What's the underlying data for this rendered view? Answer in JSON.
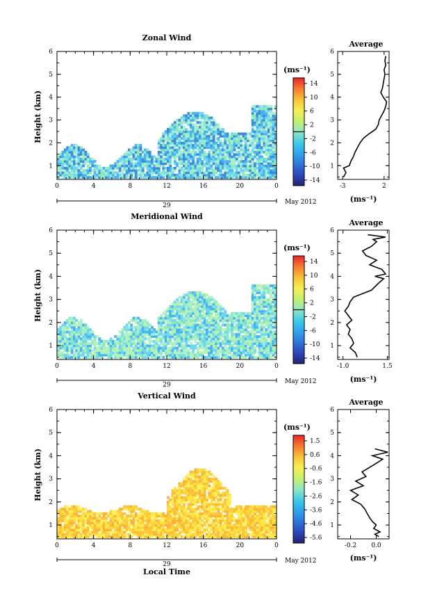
{
  "figure": {
    "date_label": "May 2012",
    "day_label": "29",
    "xlabel": "Local Time"
  },
  "chart_data": [
    {
      "type": "heatmap",
      "title": "Zonal Wind",
      "ylabel": "Height (km)",
      "x_ticks": [
        "0",
        "4",
        "8",
        "12",
        "16",
        "20",
        "0"
      ],
      "xlim": [
        0,
        24
      ],
      "y_ticks": [
        "1",
        "2",
        "3",
        "4",
        "5",
        "6"
      ],
      "ylim": [
        0.4,
        6
      ],
      "colorbar": {
        "unit": "(ms⁻¹)",
        "ticks": [
          "14",
          "10",
          "6",
          "2",
          "-2",
          "-6",
          "-10",
          "-14"
        ],
        "range": [
          -16,
          16
        ],
        "marker": 0
      },
      "fill_colors": [
        "#46b4f0",
        "#6ed6f4",
        "#8ee8c0",
        "#3c8cd8",
        "#aaf0d0"
      ],
      "profile": {
        "title": "Average",
        "unit": "(ms⁻¹)",
        "x_ticks": [
          "-3",
          "2"
        ],
        "x_tick_values": [
          -3,
          2
        ],
        "xlim": [
          -3.6,
          2.6
        ],
        "x": [
          -2.9,
          -2.6,
          -2.9,
          -2.2,
          -2.0,
          -1.7,
          -1.5,
          -1.2,
          -0.9,
          -0.5,
          0.2,
          1.0,
          1.3,
          1.4,
          1.7,
          2.0,
          2.2,
          2.3,
          1.9,
          1.6,
          1.8,
          1.9,
          2.0,
          2.1,
          2.0,
          2.2,
          2.1,
          2.2
        ],
        "y": [
          0.5,
          0.7,
          0.9,
          1.0,
          1.2,
          1.4,
          1.6,
          1.8,
          2.0,
          2.2,
          2.4,
          2.6,
          2.8,
          3.0,
          3.2,
          3.4,
          3.6,
          3.8,
          4.0,
          4.2,
          4.4,
          4.6,
          4.8,
          5.0,
          5.2,
          5.4,
          5.6,
          5.8
        ]
      }
    },
    {
      "type": "heatmap",
      "title": "Meridional Wind",
      "ylabel": "Height (km)",
      "x_ticks": [
        "0",
        "4",
        "8",
        "12",
        "16",
        "20",
        "0"
      ],
      "xlim": [
        0,
        24
      ],
      "y_ticks": [
        "1",
        "2",
        "3",
        "4",
        "5",
        "6"
      ],
      "ylim": [
        0.4,
        6
      ],
      "colorbar": {
        "unit": "(ms⁻¹)",
        "ticks": [
          "14",
          "10",
          "6",
          "2",
          "-2",
          "-6",
          "-10",
          "-14"
        ],
        "range": [
          -16,
          16
        ],
        "marker": 0
      },
      "fill_colors": [
        "#6ed6f4",
        "#8ee8c0",
        "#46b4f0",
        "#aaf0d0",
        "#b8f4b0"
      ],
      "profile": {
        "title": "Average",
        "unit": "(ms⁻¹)",
        "x_ticks": [
          "-1.0",
          "1.5"
        ],
        "x_tick_values": [
          -1.0,
          1.5
        ],
        "xlim": [
          -1.3,
          1.6
        ],
        "x": [
          -0.2,
          -0.3,
          -0.6,
          -0.4,
          -0.5,
          -0.7,
          -0.6,
          -0.8,
          -0.5,
          -0.7,
          -0.9,
          -0.7,
          -0.6,
          -0.4,
          0.6,
          1.0,
          1.3,
          0.8,
          1.4,
          1.2,
          0.5,
          0.9,
          0.3,
          0.1,
          0.6,
          0.9,
          0.7,
          1.4,
          0.4
        ],
        "y": [
          0.5,
          0.7,
          0.9,
          1.1,
          1.3,
          1.5,
          1.7,
          1.9,
          2.1,
          2.3,
          2.5,
          2.7,
          2.9,
          3.1,
          3.4,
          3.7,
          3.9,
          4.0,
          4.1,
          4.3,
          4.5,
          4.7,
          4.9,
          5.1,
          5.3,
          5.5,
          5.6,
          5.7,
          5.8
        ]
      }
    },
    {
      "type": "heatmap",
      "title": "Vertical Wind",
      "ylabel": "Height (km)",
      "x_ticks": [
        "0",
        "4",
        "8",
        "12",
        "16",
        "20",
        "0"
      ],
      "xlim": [
        0,
        24
      ],
      "y_ticks": [
        "1",
        "2",
        "3",
        "4",
        "5",
        "6"
      ],
      "ylim": [
        0.4,
        6
      ],
      "colorbar": {
        "unit": "(ms⁻¹)",
        "ticks": [
          "1.5",
          "0.6",
          "-0.6",
          "-1.6",
          "-2.6",
          "-3.6",
          "-4.6",
          "-5.6"
        ],
        "range": [
          -6,
          2
        ]
      },
      "fill_colors": [
        "#fde540",
        "#fbd23c",
        "#fcc23a",
        "#fef060",
        "#fbb23a"
      ],
      "profile": {
        "title": "Average",
        "unit": "(ms⁻¹)",
        "x_ticks": [
          "-0.2",
          "0.0"
        ],
        "x_tick_values": [
          -0.2,
          0.0
        ],
        "xlim": [
          -0.3,
          0.1
        ],
        "x": [
          0.02,
          -0.01,
          0.03,
          -0.02,
          0.0,
          -0.03,
          -0.05,
          -0.07,
          -0.09,
          -0.12,
          -0.19,
          -0.14,
          -0.2,
          -0.1,
          -0.16,
          -0.08,
          -0.11,
          -0.02,
          0.05,
          -0.03,
          0.09,
          -0.01
        ],
        "y": [
          0.5,
          0.6,
          0.7,
          0.85,
          1.0,
          1.15,
          1.3,
          1.5,
          1.7,
          1.9,
          2.1,
          2.3,
          2.5,
          2.7,
          2.9,
          3.1,
          3.3,
          3.6,
          3.85,
          4.0,
          4.15,
          4.3
        ]
      }
    }
  ]
}
